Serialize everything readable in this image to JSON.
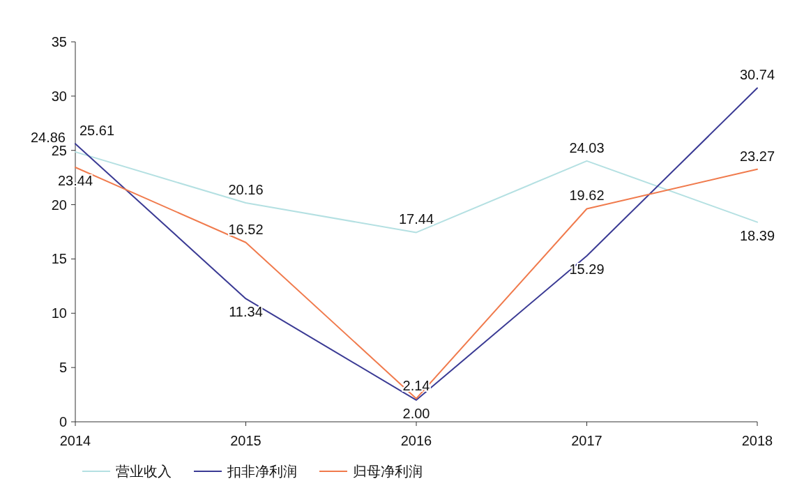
{
  "chart_data": {
    "type": "line",
    "categories": [
      "2014",
      "2015",
      "2016",
      "2017",
      "2018"
    ],
    "series": [
      {
        "name": "营业收入",
        "color": "#b4e0e2",
        "values": [
          24.86,
          20.16,
          17.44,
          24.03,
          18.39
        ],
        "value_labels": [
          "24.86",
          "20.16",
          "17.44",
          "24.03",
          "18.39"
        ]
      },
      {
        "name": "扣非净利润",
        "color": "#3a3a94",
        "values": [
          25.61,
          11.34,
          2.0,
          15.29,
          30.74
        ],
        "value_labels": [
          "25.61",
          "11.34",
          "2.00",
          "15.29",
          "30.74"
        ]
      },
      {
        "name": "归母净利润",
        "color": "#f07a4c",
        "values": [
          23.44,
          16.52,
          2.14,
          19.62,
          23.27
        ],
        "value_labels": [
          "23.44",
          "16.52",
          "2.14",
          "19.62",
          "23.27"
        ]
      }
    ],
    "ylim": [
      0,
      35
    ],
    "yticks": [
      0,
      5,
      10,
      15,
      20,
      25,
      30,
      35
    ],
    "grid": false,
    "legend": "bottom left",
    "marker": "none",
    "line_style": "solid"
  }
}
